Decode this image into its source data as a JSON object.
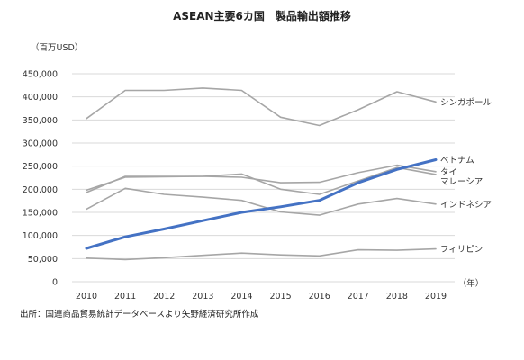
{
  "chart_data": {
    "type": "line",
    "title": "ASEAN主要6カ国　製品輸出額推移",
    "unit_label": "（百万USD）",
    "x_unit": "（年）",
    "source": "出所：国連商品貿易統計データベースより矢野経済研究所作成",
    "x": [
      2010,
      2011,
      2012,
      2013,
      2014,
      2015,
      2016,
      2017,
      2018,
      2019
    ],
    "x_tick_labels": [
      "2010",
      "2011",
      "2012",
      "2013",
      "2014",
      "2015",
      "2016",
      "2017",
      "2018",
      "2019"
    ],
    "ylim": [
      0,
      450000
    ],
    "y_tick_values": [
      0,
      50000,
      100000,
      150000,
      200000,
      250000,
      300000,
      350000,
      400000,
      450000
    ],
    "y_tick_labels": [
      "0",
      "50,000",
      "100,000",
      "150,000",
      "200,000",
      "250,000",
      "300,000",
      "350,000",
      "400,000",
      "450,000"
    ],
    "grid": true,
    "legend": "inline-right",
    "series": [
      {
        "name": "シンガポール",
        "color": "#a6a6a6",
        "highlight": false,
        "values": [
          353000,
          414000,
          414000,
          419000,
          414000,
          356000,
          338000,
          372000,
          411000,
          389000
        ]
      },
      {
        "name": "ベトナム",
        "color": "#4472c4",
        "highlight": true,
        "values": [
          72000,
          97000,
          114000,
          132000,
          150000,
          162000,
          176000,
          214000,
          243000,
          264000
        ]
      },
      {
        "name": "タイ",
        "color": "#a6a6a6",
        "highlight": false,
        "values": [
          193000,
          228000,
          228000,
          228000,
          226000,
          214000,
          215000,
          236000,
          252000,
          238000
        ]
      },
      {
        "name": "マレーシア",
        "color": "#a6a6a6",
        "highlight": false,
        "values": [
          198000,
          226000,
          227000,
          228000,
          233000,
          200000,
          189000,
          218000,
          247000,
          232000
        ]
      },
      {
        "name": "インドネシア",
        "color": "#a6a6a6",
        "highlight": false,
        "values": [
          157000,
          202000,
          189000,
          183000,
          176000,
          151000,
          144000,
          168000,
          180000,
          168000
        ]
      },
      {
        "name": "フィリピン",
        "color": "#a6a6a6",
        "highlight": false,
        "values": [
          51000,
          48000,
          52000,
          57000,
          62000,
          58000,
          56000,
          69000,
          68000,
          71000
        ]
      }
    ]
  }
}
